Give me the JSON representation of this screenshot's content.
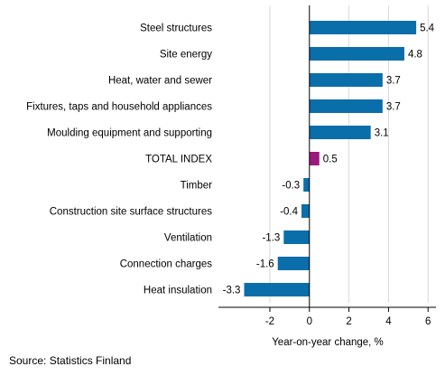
{
  "chart_data": {
    "type": "bar",
    "orientation": "horizontal",
    "categories": [
      "Steel structures",
      "Site energy",
      "Heat, water and sewer",
      "Fixtures, taps and household appliances",
      "Moulding equipment and supporting",
      "TOTAL INDEX",
      "Timber",
      "Construction site surface structures",
      "Ventilation",
      "Connection charges",
      "Heat insulation"
    ],
    "values": [
      5.4,
      4.8,
      3.7,
      3.7,
      3.1,
      0.5,
      -0.3,
      -0.4,
      -1.3,
      -1.6,
      -3.3
    ],
    "value_labels": [
      "5.4",
      "4.8",
      "3.7",
      "3.7",
      "3.1",
      "0.5",
      "-0.3",
      "-0.4",
      "-1.3",
      "-1.6",
      "-3.3"
    ],
    "highlight_category": "TOTAL INDEX",
    "xlabel": "Year-on-year change, %",
    "ylabel": "",
    "xlim": [
      -4.6,
      6.4
    ],
    "xticks": [
      -2,
      0,
      2,
      4,
      6
    ],
    "xtick_labels": [
      "-2",
      "0",
      "2",
      "4",
      "6"
    ],
    "grid": "vertical",
    "colors": {
      "bar": "#0a6eaa",
      "highlight": "#9b1a7c",
      "grid": "#d9d9d9",
      "axis": "#000000"
    }
  },
  "source": "Source: Statistics Finland"
}
